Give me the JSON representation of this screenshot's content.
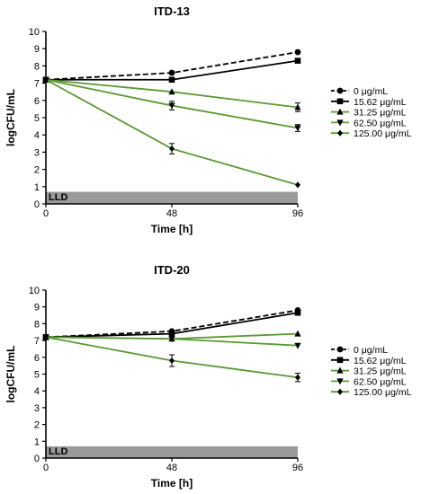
{
  "chart_data": [
    {
      "type": "line",
      "title": "ITD-13",
      "xlabel": "Time [h]",
      "ylabel": "logCFU/mL",
      "x": [
        0,
        48,
        96
      ],
      "xlim": [
        0,
        96
      ],
      "ylim": [
        0,
        10
      ],
      "yticks": [
        0,
        1,
        2,
        3,
        4,
        5,
        6,
        7,
        8,
        9,
        10
      ],
      "xticks": [
        0,
        48,
        96
      ],
      "lld": {
        "label": "LLD",
        "value": 0.7
      },
      "series": [
        {
          "name": "0 μg/mL",
          "values": [
            7.2,
            7.6,
            8.8
          ],
          "err": [
            0,
            0,
            0
          ],
          "color": "#000000",
          "dash": true,
          "marker": "circle"
        },
        {
          "name": "15.62 μg/mL",
          "values": [
            7.2,
            7.2,
            8.3
          ],
          "err": [
            0,
            0,
            0
          ],
          "color": "#000000",
          "dash": false,
          "marker": "square"
        },
        {
          "name": "31.25 μg/mL",
          "values": [
            7.2,
            6.5,
            5.6
          ],
          "err": [
            0,
            0,
            0.25
          ],
          "color": "#5a9a32",
          "dash": false,
          "marker": "triangle-up"
        },
        {
          "name": "62.50 μg/mL",
          "values": [
            7.2,
            5.7,
            4.4
          ],
          "err": [
            0,
            0.25,
            0.2
          ],
          "color": "#5a9a32",
          "dash": false,
          "marker": "triangle-down"
        },
        {
          "name": "125.00 μg/mL",
          "values": [
            7.2,
            3.2,
            1.1
          ],
          "err": [
            0,
            0.3,
            0
          ],
          "color": "#5a9a32",
          "dash": false,
          "marker": "diamond"
        }
      ]
    },
    {
      "type": "line",
      "title": "ITD-20",
      "xlabel": "Time [h]",
      "ylabel": "logCFU/mL",
      "x": [
        0,
        48,
        96
      ],
      "xlim": [
        0,
        96
      ],
      "ylim": [
        0,
        10
      ],
      "yticks": [
        0,
        1,
        2,
        3,
        4,
        5,
        6,
        7,
        8,
        9,
        10
      ],
      "xticks": [
        0,
        48,
        96
      ],
      "lld": {
        "label": "LLD",
        "value": 0.7
      },
      "series": [
        {
          "name": "0 μg/mL",
          "values": [
            7.2,
            7.55,
            8.8
          ],
          "err": [
            0,
            0,
            0
          ],
          "color": "#000000",
          "dash": true,
          "marker": "circle"
        },
        {
          "name": "15.62 μg/mL",
          "values": [
            7.2,
            7.4,
            8.65
          ],
          "err": [
            0,
            0,
            0
          ],
          "color": "#000000",
          "dash": false,
          "marker": "square"
        },
        {
          "name": "31.25 μg/mL",
          "values": [
            7.2,
            7.1,
            7.4
          ],
          "err": [
            0,
            0,
            0
          ],
          "color": "#5a9a32",
          "dash": false,
          "marker": "triangle-up"
        },
        {
          "name": "62.50 μg/mL",
          "values": [
            7.2,
            7.1,
            6.7
          ],
          "err": [
            0,
            0,
            0
          ],
          "color": "#5a9a32",
          "dash": false,
          "marker": "triangle-down"
        },
        {
          "name": "125.00 μg/mL",
          "values": [
            7.2,
            5.8,
            4.8
          ],
          "err": [
            0,
            0.35,
            0.25
          ],
          "color": "#5a9a32",
          "dash": false,
          "marker": "diamond"
        }
      ]
    }
  ]
}
